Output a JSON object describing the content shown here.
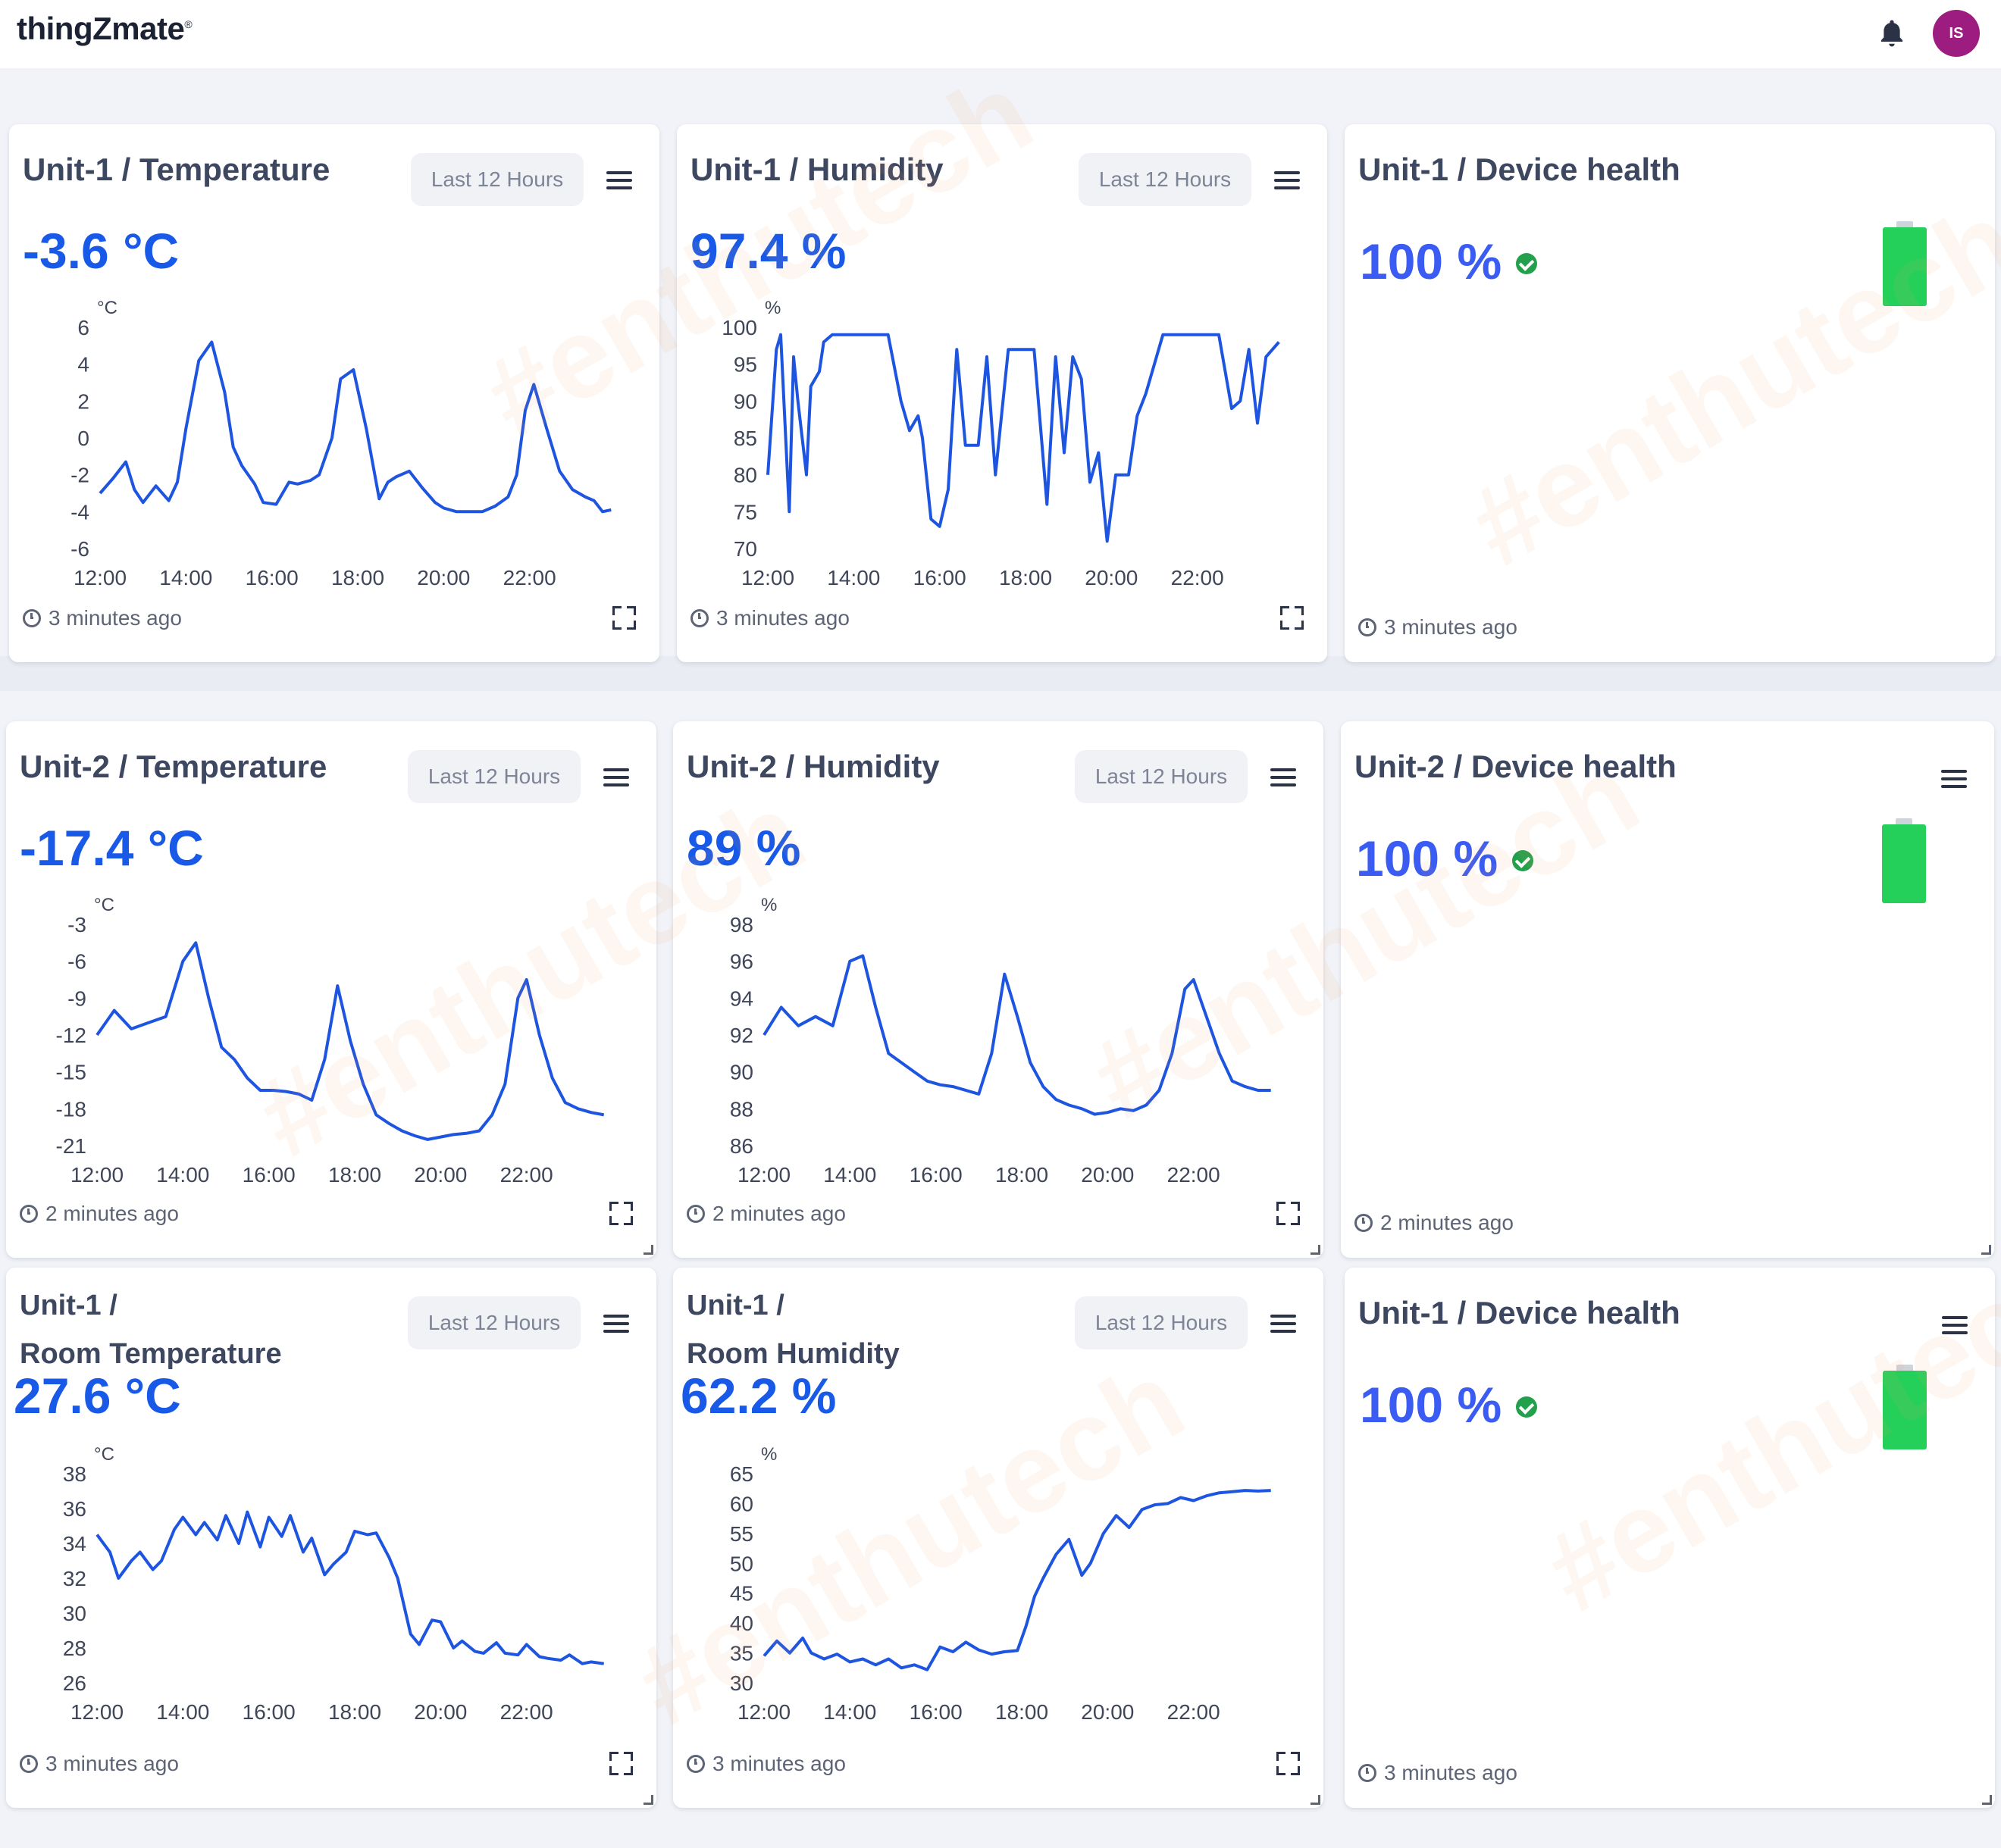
{
  "app": {
    "logo": "thingZmate",
    "logo_mark": "®",
    "avatar_initials": "IS"
  },
  "cards": [
    {
      "id": "u1-temp",
      "kind": "chart",
      "title": "Unit-1 / Temperature",
      "range": "Last 12 Hours",
      "value": "-3.6 °C",
      "updated": "3 minutes ago",
      "chart_data": {
        "type": "line",
        "y_unit": "°C",
        "ylim": [
          -6,
          6
        ],
        "yticks": [
          "6",
          "4",
          "2",
          "0",
          "-2",
          "-4",
          "-6"
        ],
        "x_ticks": [
          "12:00",
          "14:00",
          "16:00",
          "18:00",
          "20:00",
          "22:00"
        ],
        "x_range": [
          12,
          24
        ],
        "series": [
          {
            "x": [
              12,
              12.3,
              12.6,
              12.8,
              13,
              13.3,
              13.6,
              13.8,
              14,
              14.3,
              14.6,
              14.9,
              15.1,
              15.3,
              15.6,
              15.8,
              16.1,
              16.4,
              16.6,
              16.9,
              17.1,
              17.4,
              17.6,
              17.9,
              18.2,
              18.5,
              18.7,
              18.9,
              19.2,
              19.5,
              19.8,
              20,
              20.3,
              20.6,
              20.9,
              21.2,
              21.5,
              21.7,
              21.9,
              22.1,
              22.4,
              22.7,
              23,
              23.3,
              23.5,
              23.7,
              23.9
            ],
            "y": [
              -3,
              -2.2,
              -1.3,
              -2.8,
              -3.5,
              -2.6,
              -3.4,
              -2.4,
              0.5,
              4.2,
              5.2,
              2.5,
              -0.5,
              -1.5,
              -2.5,
              -3.5,
              -3.6,
              -2.4,
              -2.5,
              -2.3,
              -2.0,
              0,
              3.2,
              3.7,
              0.5,
              -3.3,
              -2.4,
              -2.1,
              -1.8,
              -2.7,
              -3.5,
              -3.8,
              -4.0,
              -4.0,
              -4.0,
              -3.7,
              -3.2,
              -2.0,
              1.5,
              2.9,
              0.5,
              -1.8,
              -2.8,
              -3.2,
              -3.4,
              -4.0,
              -3.9
            ],
            "color": "#1e55e0"
          }
        ]
      }
    },
    {
      "id": "u1-hum",
      "kind": "chart",
      "title": "Unit-1 / Humidity",
      "range": "Last 12 Hours",
      "value": "97.4 %",
      "updated": "3 minutes ago",
      "chart_data": {
        "type": "line",
        "y_unit": "%",
        "ylim": [
          70,
          100
        ],
        "yticks": [
          "100",
          "95",
          "90",
          "85",
          "80",
          "75",
          "70"
        ],
        "x_ticks": [
          "12:00",
          "14:00",
          "16:00",
          "18:00",
          "20:00",
          "22:00"
        ],
        "x_range": [
          12,
          24
        ],
        "series": [
          {
            "x": [
              12,
              12.2,
              12.3,
              12.5,
              12.6,
              12.7,
              12.9,
              13,
              13.2,
              13.3,
              13.5,
              13.7,
              13.9,
              14.2,
              14.5,
              14.8,
              15.1,
              15.3,
              15.5,
              15.6,
              15.8,
              16,
              16.2,
              16.4,
              16.6,
              16.9,
              17.1,
              17.3,
              17.6,
              17.9,
              18.2,
              18.5,
              18.7,
              18.9,
              19.1,
              19.3,
              19.5,
              19.7,
              19.9,
              20.1,
              20.4,
              20.6,
              20.8,
              21,
              21.2,
              21.4,
              21.6,
              21.9,
              22.2,
              22.5,
              22.8,
              23,
              23.2,
              23.4,
              23.6,
              23.9
            ],
            "y": [
              80,
              97,
              99,
              75,
              96,
              90,
              80,
              92,
              94,
              98,
              99,
              99,
              99,
              99,
              99,
              99,
              90,
              86,
              88,
              85,
              74,
              73,
              78,
              97,
              84,
              84,
              96,
              80,
              97,
              97,
              97,
              76,
              96,
              83,
              96,
              93,
              79,
              83,
              71,
              80,
              80,
              88,
              91,
              95,
              99,
              99,
              99,
              99,
              99,
              99,
              89,
              90,
              97,
              87,
              96,
              98
            ],
            "color": "#1e55e0"
          }
        ]
      }
    },
    {
      "id": "u1-health",
      "kind": "health",
      "title": "Unit-1 / Device health",
      "value": "100 %",
      "updated": "3 minutes ago"
    },
    {
      "id": "u2-temp",
      "kind": "chart",
      "title": "Unit-2 / Temperature",
      "range": "Last 12 Hours",
      "value": "-17.4 °C",
      "updated": "2 minutes ago",
      "chart_data": {
        "type": "line",
        "y_unit": "°C",
        "ylim": [
          -21,
          -3
        ],
        "yticks": [
          "-3",
          "-6",
          "-9",
          "-12",
          "-15",
          "-18",
          "-21"
        ],
        "x_ticks": [
          "12:00",
          "14:00",
          "16:00",
          "18:00",
          "20:00",
          "22:00"
        ],
        "x_range": [
          12,
          24
        ],
        "series": [
          {
            "x": [
              12,
              12.4,
              12.8,
              13.2,
              13.6,
              14,
              14.3,
              14.6,
              14.9,
              15.2,
              15.5,
              15.8,
              16.1,
              16.4,
              16.7,
              17,
              17.3,
              17.6,
              17.9,
              18.2,
              18.5,
              18.8,
              19.1,
              19.4,
              19.7,
              20,
              20.3,
              20.6,
              20.9,
              21.2,
              21.5,
              21.8,
              22,
              22.3,
              22.6,
              22.9,
              23.2,
              23.5,
              23.8
            ],
            "y": [
              -12,
              -10,
              -11.5,
              -11,
              -10.5,
              -6,
              -4.5,
              -9,
              -13,
              -14,
              -15.5,
              -16.5,
              -16.5,
              -16.6,
              -16.8,
              -17.3,
              -14,
              -8,
              -12.5,
              -16,
              -18.5,
              -19.2,
              -19.8,
              -20.2,
              -20.5,
              -20.3,
              -20.1,
              -20,
              -19.8,
              -18.5,
              -16,
              -9,
              -7.5,
              -12,
              -15.5,
              -17.5,
              -18,
              -18.3,
              -18.5
            ],
            "color": "#1e55e0"
          }
        ]
      }
    },
    {
      "id": "u2-hum",
      "kind": "chart",
      "title": "Unit-2 / Humidity",
      "range": "Last 12 Hours",
      "value": "89 %",
      "updated": "2 minutes ago",
      "chart_data": {
        "type": "line",
        "y_unit": "%",
        "ylim": [
          86,
          98
        ],
        "yticks": [
          "98",
          "96",
          "94",
          "92",
          "90",
          "88",
          "86"
        ],
        "x_ticks": [
          "12:00",
          "14:00",
          "16:00",
          "18:00",
          "20:00",
          "22:00"
        ],
        "x_range": [
          12,
          24
        ],
        "series": [
          {
            "x": [
              12,
              12.4,
              12.8,
              13.2,
              13.6,
              14,
              14.3,
              14.6,
              14.9,
              15.2,
              15.5,
              15.8,
              16.1,
              16.4,
              16.7,
              17,
              17.3,
              17.6,
              17.9,
              18.2,
              18.5,
              18.8,
              19.1,
              19.4,
              19.7,
              20,
              20.3,
              20.6,
              20.9,
              21.2,
              21.5,
              21.8,
              22,
              22.3,
              22.6,
              22.9,
              23.2,
              23.5,
              23.8
            ],
            "y": [
              92,
              93.5,
              92.5,
              93,
              92.5,
              96,
              96.3,
              93.5,
              91,
              90.5,
              90,
              89.5,
              89.3,
              89.2,
              89,
              88.8,
              91,
              95.3,
              93,
              90.5,
              89.2,
              88.5,
              88.2,
              88,
              87.7,
              87.8,
              88,
              87.9,
              88.2,
              89,
              91,
              94.5,
              95,
              93,
              91,
              89.5,
              89.2,
              89,
              89
            ],
            "color": "#1e55e0"
          }
        ]
      }
    },
    {
      "id": "u2-health",
      "kind": "health",
      "title": "Unit-2 / Device health",
      "value": "100 %",
      "updated": "2 minutes ago"
    },
    {
      "id": "u1-room-temp",
      "kind": "chart",
      "title": "Unit-1 /",
      "title2": "Room Temperature",
      "range": "Last 12 Hours",
      "value": "27.6 °C",
      "updated": "3 minutes ago",
      "chart_data": {
        "type": "line",
        "y_unit": "°C",
        "ylim": [
          26,
          38
        ],
        "yticks": [
          "38",
          "36",
          "34",
          "32",
          "30",
          "28",
          "26"
        ],
        "x_ticks": [
          "12:00",
          "14:00",
          "16:00",
          "18:00",
          "20:00",
          "22:00"
        ],
        "x_range": [
          12,
          24
        ],
        "series": [
          {
            "x": [
              12,
              12.3,
              12.5,
              12.8,
              13,
              13.3,
              13.5,
              13.8,
              14,
              14.3,
              14.5,
              14.8,
              15,
              15.3,
              15.5,
              15.8,
              16,
              16.3,
              16.5,
              16.8,
              17,
              17.3,
              17.5,
              17.8,
              18,
              18.3,
              18.5,
              18.8,
              19,
              19.3,
              19.5,
              19.8,
              20,
              20.3,
              20.5,
              20.8,
              21,
              21.3,
              21.5,
              21.8,
              22,
              22.3,
              22.5,
              22.8,
              23,
              23.3,
              23.5,
              23.8
            ],
            "y": [
              34.5,
              33.5,
              32,
              33,
              33.5,
              32.5,
              33,
              34.8,
              35.5,
              34.5,
              35.2,
              34.2,
              35.6,
              34,
              35.8,
              33.8,
              35.5,
              34.4,
              35.6,
              33.5,
              34.3,
              32.2,
              32.8,
              33.5,
              34.7,
              34.5,
              34.6,
              33.2,
              32,
              28.8,
              28.2,
              29.6,
              29.5,
              28,
              28.4,
              27.8,
              27.7,
              28.3,
              27.7,
              27.6,
              28.2,
              27.5,
              27.4,
              27.3,
              27.6,
              27.1,
              27.2,
              27.1
            ],
            "color": "#1e55e0"
          }
        ]
      }
    },
    {
      "id": "u1-room-hum",
      "kind": "chart",
      "title": "Unit-1 /",
      "title2": "Room Humidity",
      "range": "Last 12 Hours",
      "value": "62.2 %",
      "updated": "3 minutes ago",
      "chart_data": {
        "type": "line",
        "y_unit": "%",
        "ylim": [
          30,
          65
        ],
        "yticks": [
          "65",
          "60",
          "55",
          "50",
          "45",
          "40",
          "35",
          "30"
        ],
        "x_ticks": [
          "12:00",
          "14:00",
          "16:00",
          "18:00",
          "20:00",
          "22:00"
        ],
        "x_range": [
          12,
          24
        ],
        "series": [
          {
            "x": [
              12,
              12.3,
              12.6,
              12.9,
              13.1,
              13.4,
              13.7,
              14,
              14.3,
              14.6,
              14.9,
              15.2,
              15.5,
              15.8,
              16.1,
              16.4,
              16.7,
              17,
              17.3,
              17.6,
              17.9,
              18.1,
              18.3,
              18.5,
              18.8,
              19.1,
              19.4,
              19.6,
              19.9,
              20.2,
              20.5,
              20.8,
              21.1,
              21.4,
              21.7,
              22,
              22.3,
              22.6,
              22.9,
              23.2,
              23.5,
              23.8
            ],
            "y": [
              34.5,
              37,
              35,
              37.5,
              35,
              34,
              34.8,
              33.5,
              34,
              33,
              34,
              32.5,
              33,
              32.2,
              36,
              35.2,
              36.8,
              35.5,
              34.8,
              35.2,
              35.4,
              39.5,
              44.5,
              47.5,
              51.5,
              54,
              48,
              50,
              55,
              58,
              56,
              59,
              59.8,
              60,
              61,
              60.5,
              61.3,
              61.8,
              62,
              62.2,
              62.1,
              62.2
            ],
            "color": "#1e55e0"
          }
        ]
      }
    },
    {
      "id": "u1-health-2",
      "kind": "health",
      "title": "Unit-1 / Device health",
      "value": "100 %",
      "updated": "3 minutes ago"
    }
  ]
}
